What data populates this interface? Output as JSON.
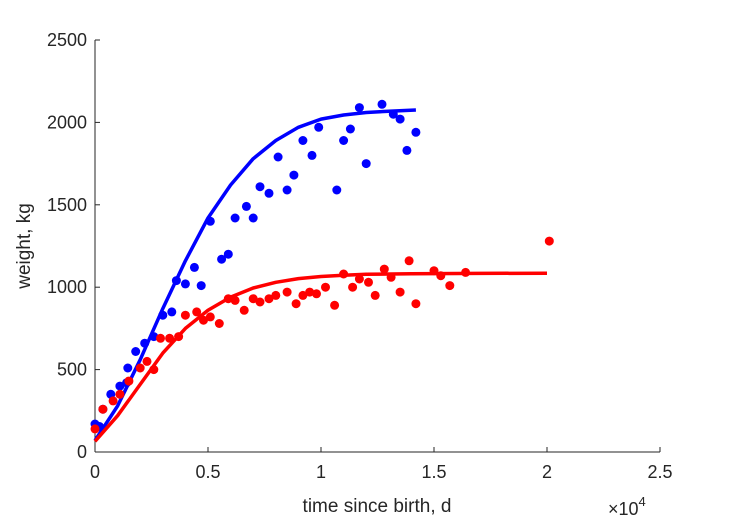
{
  "chart_data": {
    "type": "scatter",
    "xlabel": "time since birth, d",
    "ylabel": "weight, kg",
    "x_multiplier_label": "×10",
    "x_multiplier_exponent": "4",
    "xlim": [
      0,
      25000
    ],
    "ylim": [
      0,
      2500
    ],
    "x_ticks": [
      0,
      5000,
      10000,
      15000,
      20000,
      25000
    ],
    "x_tick_labels": [
      "0",
      "0.5",
      "1",
      "1.5",
      "2",
      "2.5"
    ],
    "y_ticks": [
      0,
      500,
      1000,
      1500,
      2000,
      2500
    ],
    "y_tick_labels": [
      "0",
      "500",
      "1000",
      "1500",
      "2000",
      "2500"
    ],
    "grid": false,
    "series": [
      {
        "color": "#0000ff",
        "points": [
          [
            0,
            170
          ],
          [
            200,
            155
          ],
          [
            350,
            260
          ],
          [
            700,
            350
          ],
          [
            1100,
            400
          ],
          [
            1400,
            420
          ],
          [
            1450,
            510
          ],
          [
            1800,
            610
          ],
          [
            2200,
            660
          ],
          [
            2600,
            700
          ],
          [
            3000,
            830
          ],
          [
            3400,
            850
          ],
          [
            3600,
            1040
          ],
          [
            4000,
            1020
          ],
          [
            4400,
            1120
          ],
          [
            4700,
            1010
          ],
          [
            5100,
            1400
          ],
          [
            5600,
            1170
          ],
          [
            5900,
            1200
          ],
          [
            6200,
            1420
          ],
          [
            6700,
            1490
          ],
          [
            7000,
            1420
          ],
          [
            7300,
            1610
          ],
          [
            7700,
            1570
          ],
          [
            8100,
            1790
          ],
          [
            8500,
            1590
          ],
          [
            8800,
            1680
          ],
          [
            9200,
            1890
          ],
          [
            9600,
            1800
          ],
          [
            9900,
            1970
          ],
          [
            10700,
            1590
          ],
          [
            11000,
            1890
          ],
          [
            11300,
            1960
          ],
          [
            11700,
            2090
          ],
          [
            12000,
            1750
          ],
          [
            12700,
            2110
          ],
          [
            13200,
            2050
          ],
          [
            13500,
            2020
          ],
          [
            13800,
            1830
          ],
          [
            14200,
            1940
          ]
        ],
        "fit": [
          [
            0,
            70
          ],
          [
            1000,
            280
          ],
          [
            2000,
            560
          ],
          [
            3000,
            870
          ],
          [
            4000,
            1160
          ],
          [
            5000,
            1420
          ],
          [
            6000,
            1620
          ],
          [
            7000,
            1780
          ],
          [
            8000,
            1890
          ],
          [
            9000,
            1970
          ],
          [
            10000,
            2020
          ],
          [
            11000,
            2045
          ],
          [
            12000,
            2060
          ],
          [
            13000,
            2068
          ],
          [
            14200,
            2075
          ]
        ]
      },
      {
        "color": "#ff0000",
        "points": [
          [
            0,
            140
          ],
          [
            350,
            260
          ],
          [
            800,
            310
          ],
          [
            1100,
            350
          ],
          [
            1500,
            430
          ],
          [
            2000,
            510
          ],
          [
            2300,
            550
          ],
          [
            2600,
            500
          ],
          [
            2900,
            690
          ],
          [
            3300,
            690
          ],
          [
            3700,
            700
          ],
          [
            4000,
            830
          ],
          [
            4500,
            850
          ],
          [
            4800,
            800
          ],
          [
            5100,
            820
          ],
          [
            5500,
            780
          ],
          [
            5900,
            930
          ],
          [
            6200,
            920
          ],
          [
            6600,
            860
          ],
          [
            7000,
            930
          ],
          [
            7300,
            910
          ],
          [
            7700,
            930
          ],
          [
            8000,
            950
          ],
          [
            8500,
            970
          ],
          [
            8900,
            900
          ],
          [
            9200,
            950
          ],
          [
            9500,
            970
          ],
          [
            9800,
            960
          ],
          [
            10200,
            1000
          ],
          [
            10600,
            890
          ],
          [
            11000,
            1080
          ],
          [
            11400,
            1000
          ],
          [
            11700,
            1050
          ],
          [
            12100,
            1030
          ],
          [
            12400,
            950
          ],
          [
            12800,
            1110
          ],
          [
            13100,
            1060
          ],
          [
            13500,
            970
          ],
          [
            13900,
            1160
          ],
          [
            14200,
            900
          ],
          [
            15000,
            1100
          ],
          [
            15300,
            1070
          ],
          [
            15700,
            1010
          ],
          [
            16400,
            1090
          ],
          [
            20100,
            1280
          ]
        ],
        "fit": [
          [
            0,
            65
          ],
          [
            1000,
            220
          ],
          [
            2000,
            410
          ],
          [
            3000,
            600
          ],
          [
            4000,
            750
          ],
          [
            5000,
            860
          ],
          [
            6000,
            940
          ],
          [
            7000,
            995
          ],
          [
            8000,
            1030
          ],
          [
            9000,
            1052
          ],
          [
            10000,
            1065
          ],
          [
            11000,
            1073
          ],
          [
            12000,
            1078
          ],
          [
            14000,
            1082
          ],
          [
            17000,
            1084
          ],
          [
            20000,
            1085
          ]
        ]
      }
    ]
  }
}
